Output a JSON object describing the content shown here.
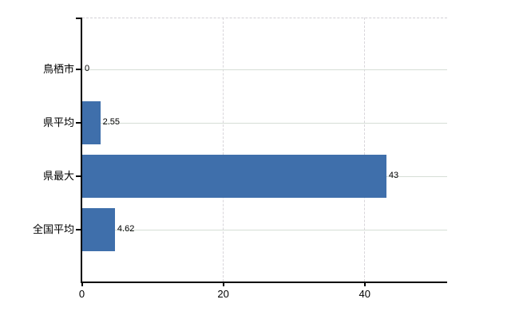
{
  "chart_data": {
    "type": "bar",
    "orientation": "horizontal",
    "title": "",
    "xlabel": "",
    "ylabel": "",
    "categories": [
      "鳥栖市",
      "県平均",
      "県最大",
      "全国平均"
    ],
    "values": [
      0,
      2.55,
      43,
      4.62
    ],
    "value_labels": [
      "0",
      "2.55",
      "43",
      "4.62"
    ],
    "xticks": [
      0,
      20,
      40
    ],
    "xtick_labels": [
      "0",
      "20",
      "40"
    ],
    "xlim": [
      0,
      51.6
    ],
    "grid": true,
    "legend": false,
    "bar_color": "#3f6fab",
    "h_grid_color": "#d6ded6",
    "v_grid_color": "#d8d5da",
    "top_border_color": "#d2d0d5",
    "axis_color": "#000000",
    "label_color": "#000000",
    "background_color": "#ffffff"
  }
}
